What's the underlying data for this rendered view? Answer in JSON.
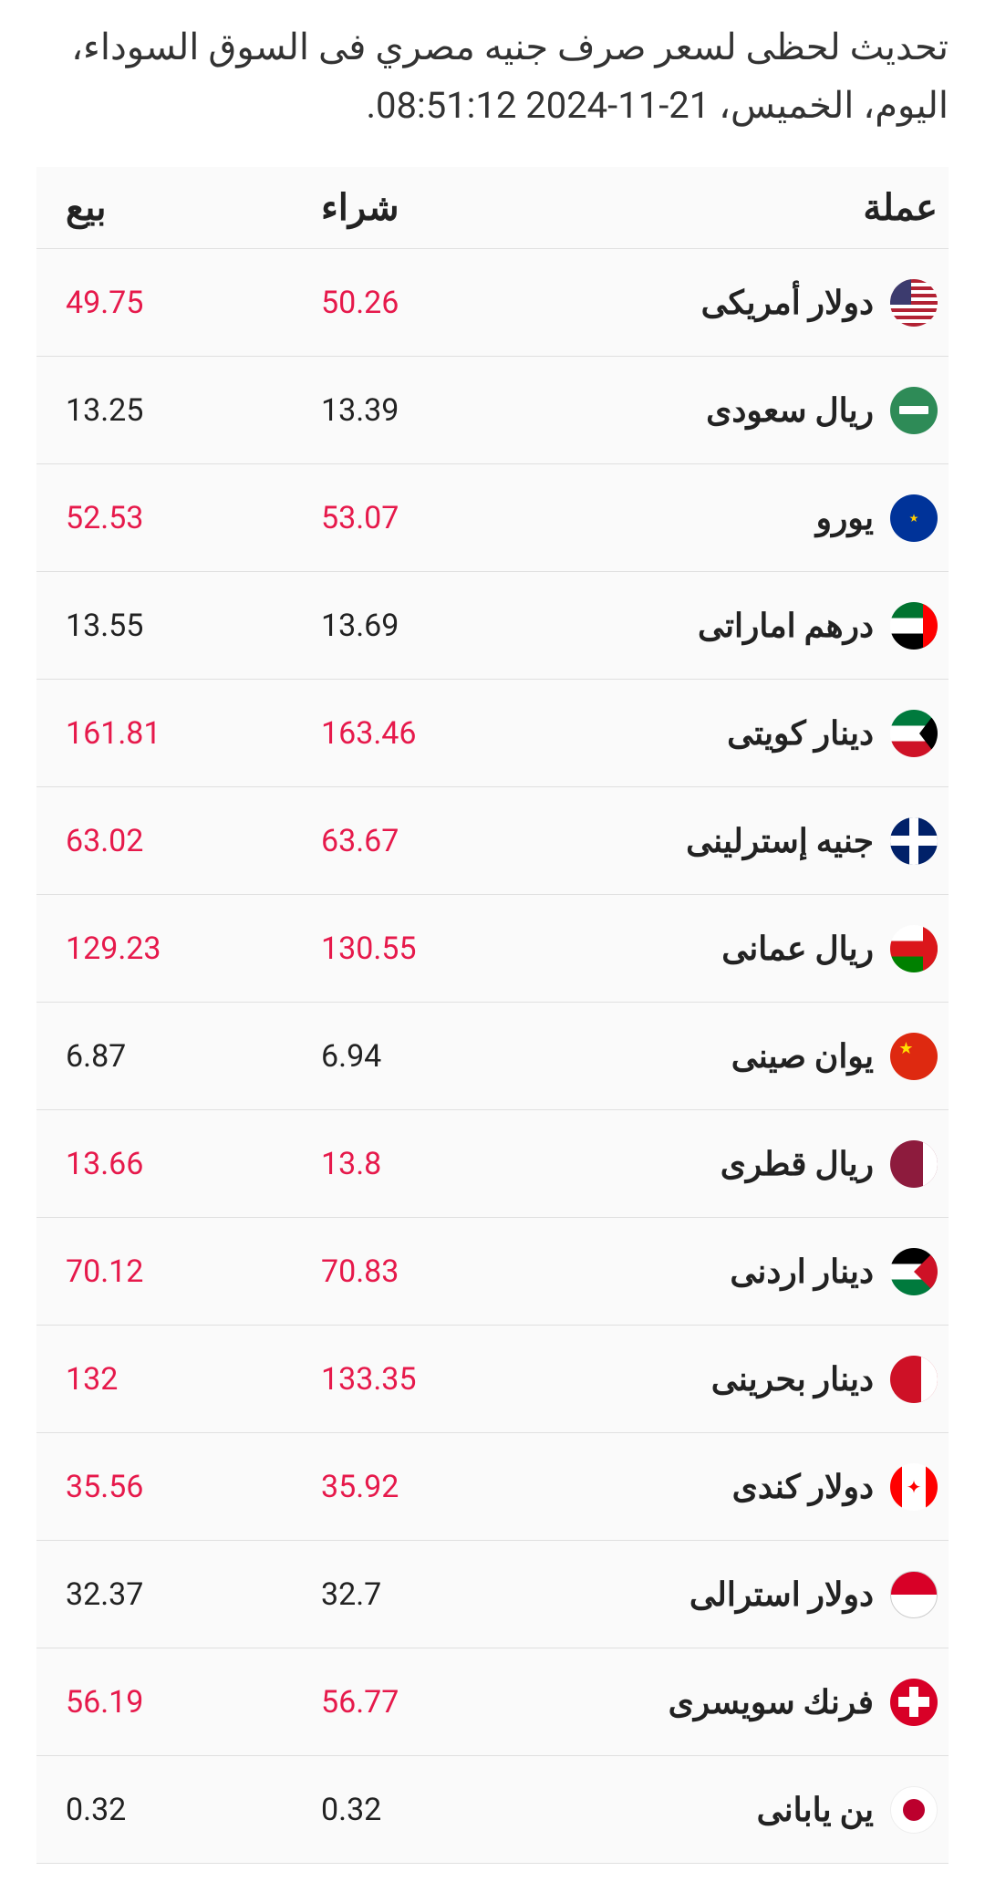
{
  "heading": "تحديث لحظى لسعر صرف جنيه مصري فى السوق السوداء، اليوم، الخميس، 21-11-2024 08:51:12.",
  "columns": {
    "currency": "عملة",
    "buy": "شراء",
    "sell": "بيع"
  },
  "colors": {
    "highlight": "#e6194b",
    "normal": "#222222",
    "border": "#e0e0e0",
    "background": "#ffffff",
    "table_bg": "#fafafa"
  },
  "rows": [
    {
      "name": "دولار أمريكى",
      "flag": "flag-us",
      "buy": "50.26",
      "sell": "49.75",
      "highlight": true
    },
    {
      "name": "ريال سعودى",
      "flag": "flag-sa",
      "buy": "13.39",
      "sell": "13.25",
      "highlight": false
    },
    {
      "name": "يورو",
      "flag": "flag-eu",
      "buy": "53.07",
      "sell": "52.53",
      "highlight": true
    },
    {
      "name": "درهم اماراتى",
      "flag": "flag-ae",
      "buy": "13.69",
      "sell": "13.55",
      "highlight": false
    },
    {
      "name": "دينار كويتى",
      "flag": "flag-kw",
      "buy": "163.46",
      "sell": "161.81",
      "highlight": true
    },
    {
      "name": "جنيه إسترلينى",
      "flag": "flag-gb",
      "buy": "63.67",
      "sell": "63.02",
      "highlight": true
    },
    {
      "name": "ريال عمانى",
      "flag": "flag-om",
      "buy": "130.55",
      "sell": "129.23",
      "highlight": true
    },
    {
      "name": "يوان صينى",
      "flag": "flag-cn",
      "buy": "6.94",
      "sell": "6.87",
      "highlight": false
    },
    {
      "name": "ريال قطرى",
      "flag": "flag-qa",
      "buy": "13.8",
      "sell": "13.66",
      "highlight": true
    },
    {
      "name": "دينار اردنى",
      "flag": "flag-jo",
      "buy": "70.83",
      "sell": "70.12",
      "highlight": true
    },
    {
      "name": "دينار بحرينى",
      "flag": "flag-bh",
      "buy": "133.35",
      "sell": "132",
      "highlight": true
    },
    {
      "name": "دولار كندى",
      "flag": "flag-ca",
      "buy": "35.92",
      "sell": "35.56",
      "highlight": true
    },
    {
      "name": "دولار استرالى",
      "flag": "flag-au",
      "buy": "32.7",
      "sell": "32.37",
      "highlight": false
    },
    {
      "name": "فرنك سويسرى",
      "flag": "flag-ch",
      "buy": "56.77",
      "sell": "56.19",
      "highlight": true
    },
    {
      "name": "ين يابانى",
      "flag": "flag-jp",
      "buy": "0.32",
      "sell": "0.32",
      "highlight": false
    }
  ]
}
